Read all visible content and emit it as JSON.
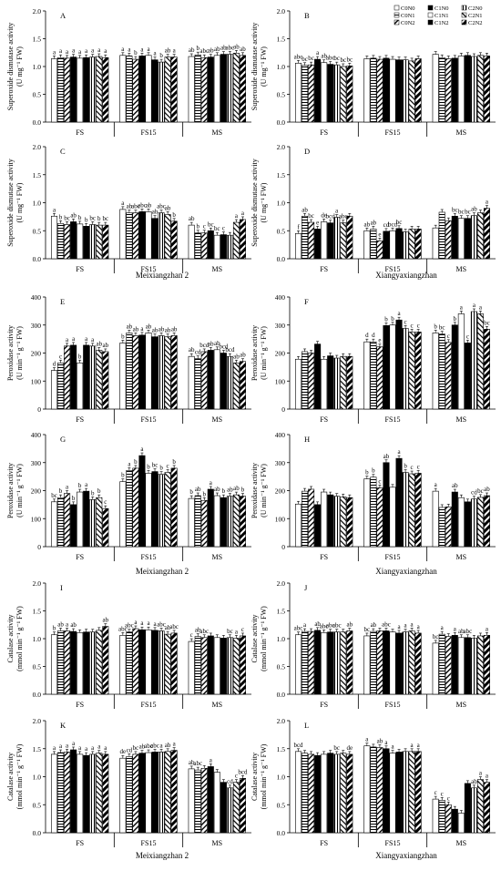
{
  "legend": [
    "C0N0",
    "C0N1",
    "C0N2",
    "C1N0",
    "C1N1",
    "C1N2",
    "C2N0",
    "C2N1",
    "C2N2"
  ],
  "group_labels": [
    "FS",
    "FS15",
    "MS"
  ],
  "cultivars": [
    "Meixiangzhan 2",
    "Xiangyaxiangzhan"
  ],
  "chart_data": [
    {
      "type": "bar",
      "panel": "A",
      "ylabel": "Superoxide dismutase activity",
      "yunit": "(U mg⁻¹ FW)",
      "ylim": [
        0,
        2
      ],
      "yticks": [
        "0.0",
        "0.5",
        "1.0",
        "1.5",
        "2.0"
      ],
      "categories": [
        "FS",
        "FS15",
        "MS"
      ],
      "values": [
        [
          1.14,
          1.16,
          1.15,
          1.17,
          1.15,
          1.16,
          1.17,
          1.18,
          1.16
        ],
        [
          1.2,
          1.19,
          1.13,
          1.19,
          1.2,
          1.12,
          1.08,
          1.17,
          1.17
        ],
        [
          1.18,
          1.21,
          1.16,
          1.17,
          1.2,
          1.22,
          1.22,
          1.24,
          1.2
        ]
      ],
      "labels": [
        [
          "a",
          "a",
          "a",
          "a",
          "a",
          "a",
          "a",
          "a",
          "a"
        ],
        [
          "a",
          "a",
          "b",
          "a",
          "a",
          "a",
          "b",
          "ab",
          "a"
        ],
        [
          "ab",
          "b",
          "abc",
          "ab",
          "ab",
          "ab",
          "abc",
          "ab",
          "ab"
        ]
      ]
    },
    {
      "type": "bar",
      "panel": "B",
      "ylabel": "Superoxide dismutase activity",
      "yunit": "(U mg⁻¹ FW)",
      "ylim": [
        0,
        2
      ],
      "yticks": [
        "0.0",
        "0.5",
        "1.0",
        "1.5",
        "2.0"
      ],
      "categories": [
        "FS",
        "FS15",
        "MS"
      ],
      "values": [
        [
          1.06,
          1.02,
          1.03,
          1.13,
          1.07,
          1.04,
          1.03,
          1.0,
          1.01
        ],
        [
          1.14,
          1.15,
          1.13,
          1.15,
          1.13,
          1.12,
          1.12,
          1.1,
          1.14
        ],
        [
          1.22,
          1.16,
          1.14,
          1.15,
          1.19,
          1.2,
          1.18,
          1.2,
          1.19
        ]
      ],
      "labels": [
        [
          "abc",
          "bc",
          "bc",
          "a",
          "ab",
          "abc",
          "bc",
          "bc",
          "bc"
        ],
        [
          "",
          "",
          "",
          "",
          "",
          "",
          "",
          "",
          ""
        ],
        [
          "",
          "",
          "",
          "",
          "",
          "",
          "",
          "",
          ""
        ]
      ]
    },
    {
      "type": "bar",
      "panel": "C",
      "ylabel": "Superoxide dismutase activity",
      "yunit": "(U mg⁻¹ FW)",
      "ylim": [
        0,
        2
      ],
      "yticks": [
        "0.0",
        "0.5",
        "1.0",
        "1.5",
        "2.0"
      ],
      "categories": [
        "FS",
        "FS15",
        "MS"
      ],
      "values": [
        [
          0.76,
          0.63,
          0.61,
          0.66,
          0.62,
          0.58,
          0.61,
          0.6,
          0.6
        ],
        [
          0.88,
          0.82,
          0.82,
          0.84,
          0.84,
          0.72,
          0.82,
          0.79,
          0.67
        ],
        [
          0.6,
          0.46,
          0.46,
          0.5,
          0.42,
          0.43,
          0.42,
          0.65,
          0.7
        ]
      ],
      "labels": [
        [
          "a",
          "b",
          "bc",
          "ab",
          "b",
          "b",
          "bc",
          "b",
          "bc"
        ],
        [
          "a",
          "ab",
          "abc",
          "abc",
          "ab",
          "ab",
          "abc",
          "ab",
          "b"
        ],
        [
          "ab",
          "b",
          "c",
          "bc",
          "bc",
          "c",
          "",
          "a",
          "a"
        ]
      ]
    },
    {
      "type": "bar",
      "panel": "D",
      "ylabel": "Superoxide dismutase activity",
      "yunit": "(U mg⁻¹ FW)",
      "ylim": [
        0,
        2
      ],
      "yticks": [
        "0.0",
        "0.5",
        "1.0",
        "1.5",
        "2.0"
      ],
      "categories": [
        "FS",
        "FS15",
        "MS"
      ],
      "values": [
        [
          0.45,
          0.76,
          0.65,
          0.53,
          0.66,
          0.64,
          0.74,
          0.64,
          0.76
        ],
        [
          0.5,
          0.53,
          0.32,
          0.49,
          0.5,
          0.54,
          0.48,
          0.53,
          0.53
        ],
        [
          0.55,
          0.83,
          0.68,
          0.76,
          0.72,
          0.72,
          0.77,
          0.82,
          0.9
        ]
      ],
      "labels": [
        [
          "f",
          "ab",
          "bc",
          "e",
          "de",
          "bcd",
          "a",
          "abc",
          ""
        ],
        [
          "ab",
          "ab",
          "e",
          "cd",
          "bcd",
          "bc",
          "",
          "",
          ""
        ],
        [
          "",
          "",
          "",
          "bc",
          "bc",
          "bc",
          "ab",
          "",
          "a"
        ]
      ]
    },
    {
      "type": "bar",
      "panel": "E",
      "ylabel": "Peroxidase activity",
      "yunit": "(U min⁻¹ g⁻¹ FW)",
      "ylim": [
        0,
        400
      ],
      "yticks": [
        "0",
        "100",
        "200",
        "300",
        "400"
      ],
      "categories": [
        "FS",
        "FS15",
        "MS"
      ],
      "values": [
        [
          138,
          165,
          225,
          228,
          165,
          228,
          225,
          210,
          205
        ],
        [
          236,
          272,
          262,
          264,
          272,
          258,
          262,
          258,
          262
        ],
        [
          188,
          180,
          205,
          210,
          212,
          200,
          188,
          165,
          170
        ]
      ],
      "labels": [
        [
          "d",
          "c",
          "a",
          "a",
          "b",
          "a",
          "a",
          "ab",
          "ab"
        ],
        [
          "b",
          "ab",
          "ab",
          "a",
          "ab",
          "ab",
          "ab",
          "ab",
          "ab"
        ],
        [
          "ab",
          "cd",
          "bcd",
          "ab",
          "ab",
          "bcd",
          "bcd",
          "ab",
          "ab"
        ]
      ]
    },
    {
      "type": "bar",
      "panel": "F",
      "ylabel": "Peroxidase activity",
      "yunit": "(U min⁻¹ g⁻¹ FW)",
      "ylim": [
        0,
        400
      ],
      "yticks": [
        "0",
        "100",
        "200",
        "300",
        "400"
      ],
      "categories": [
        "FS",
        "FS15",
        "MS"
      ],
      "values": [
        [
          178,
          205,
          200,
          232,
          178,
          190,
          182,
          188,
          188
        ],
        [
          240,
          240,
          222,
          298,
          300,
          318,
          288,
          275,
          275
        ],
        [
          272,
          268,
          238,
          300,
          340,
          236,
          348,
          340,
          285
        ]
      ],
      "labels": [
        [
          "",
          "",
          "",
          "",
          "",
          "",
          "",
          "",
          ""
        ],
        [
          "d",
          "d",
          "e",
          "b",
          "b",
          "a",
          "c",
          "c",
          "c"
        ],
        [
          "b",
          "bc",
          "c",
          "b",
          "a",
          "c",
          "a",
          "a",
          "bc"
        ]
      ]
    },
    {
      "type": "bar",
      "panel": "G",
      "ylabel": "Peroxidase activity",
      "yunit": "(U min⁻¹ g⁻¹ FW)",
      "ylim": [
        0,
        400
      ],
      "yticks": [
        "0",
        "100",
        "200",
        "300",
        "400"
      ],
      "categories": [
        "FS",
        "FS15",
        "MS"
      ],
      "values": [
        [
          160,
          175,
          190,
          150,
          195,
          198,
          168,
          175,
          136
        ],
        [
          232,
          272,
          280,
          325,
          262,
          268,
          258,
          265,
          280
        ],
        [
          172,
          182,
          165,
          205,
          182,
          175,
          180,
          185,
          180
        ]
      ],
      "labels": [
        [
          "bc",
          "b",
          "a",
          "b",
          "b",
          "a",
          "b",
          "b",
          "c"
        ],
        [
          "b",
          "a",
          "b",
          "a",
          "b",
          "bc",
          "b",
          "c",
          "b"
        ],
        [
          "b",
          "ab",
          "b",
          "a",
          "ab",
          "b",
          "ab",
          "ab",
          "b"
        ]
      ]
    },
    {
      "type": "bar",
      "panel": "H",
      "ylabel": "Peroxidase activity",
      "yunit": "(U min⁻¹ g⁻¹ FW)",
      "ylim": [
        0,
        400
      ],
      "yticks": [
        "0",
        "100",
        "200",
        "300",
        "400"
      ],
      "categories": [
        "FS",
        "FS15",
        "MS"
      ],
      "values": [
        [
          152,
          198,
          205,
          150,
          195,
          185,
          180,
          178,
          175
        ],
        [
          242,
          248,
          210,
          300,
          212,
          315,
          265,
          260,
          262
        ],
        [
          198,
          140,
          142,
          195,
          175,
          160,
          170,
          176,
          182
        ]
      ],
      "labels": [
        [
          "",
          "",
          "",
          "",
          "",
          "",
          "",
          "",
          ""
        ],
        [
          "b",
          "b",
          "c",
          "ab",
          "",
          "a",
          "b",
          "c",
          "c"
        ],
        [
          "a",
          "",
          "",
          "ab",
          "",
          "",
          "cd",
          "bc",
          "ab"
        ]
      ]
    },
    {
      "type": "bar",
      "panel": "I",
      "ylabel": "Catalase activity",
      "yunit": "(mmol min⁻¹ g⁻¹ FW)",
      "ylim": [
        0,
        2
      ],
      "yticks": [
        "0.0",
        "0.5",
        "1.0",
        "1.5",
        "2.0"
      ],
      "categories": [
        "FS",
        "FS15",
        "MS"
      ],
      "values": [
        [
          1.07,
          1.14,
          1.14,
          1.13,
          1.11,
          1.12,
          1.12,
          1.15,
          1.22
        ],
        [
          1.06,
          1.12,
          1.18,
          1.16,
          1.16,
          1.15,
          1.14,
          1.08,
          1.1
        ],
        [
          0.95,
          1.04,
          1.02,
          1.05,
          1.02,
          1.01,
          1.02,
          1.01,
          1.05
        ]
      ],
      "labels": [
        [
          "b",
          "ab",
          "a",
          "ab",
          "",
          "",
          "",
          "",
          "ab"
        ],
        [
          "abc",
          "abc",
          "a",
          "a",
          "a",
          "a",
          "abc",
          "ab",
          "abc"
        ],
        [
          "c",
          "ab",
          "abc",
          "",
          "",
          "",
          "bc",
          "a",
          "c"
        ]
      ]
    },
    {
      "type": "bar",
      "panel": "J",
      "ylabel": "Catalase activity",
      "yunit": "(mmol min⁻¹ g⁻¹ FW)",
      "ylim": [
        0,
        2
      ],
      "yticks": [
        "0.0",
        "0.5",
        "1.0",
        "1.5",
        "2.0"
      ],
      "categories": [
        "FS",
        "FS15",
        "MS"
      ],
      "values": [
        [
          1.07,
          1.13,
          1.13,
          1.15,
          1.11,
          1.12,
          1.12,
          1.12,
          1.14
        ],
        [
          1.05,
          1.13,
          1.14,
          1.14,
          1.12,
          1.1,
          1.12,
          1.14,
          1.1
        ],
        [
          0.92,
          1.08,
          1.04,
          1.06,
          1.02,
          1.02,
          1.01,
          1.05,
          1.06
        ]
      ],
      "labels": [
        [
          "abc",
          "a",
          "",
          "ab",
          "abc",
          "abc",
          "abc",
          "",
          "ab"
        ],
        [
          "bc",
          "ab",
          "",
          "abc",
          "",
          "a",
          "a",
          "a",
          "a"
        ],
        [
          "bc",
          "a",
          "",
          "a",
          "ab",
          "abc",
          "",
          "",
          "a"
        ]
      ]
    },
    {
      "type": "bar",
      "panel": "K",
      "ylabel": "Catalase activity",
      "yunit": "(mmol min⁻¹ g⁻¹ FW)",
      "ylim": [
        0,
        2
      ],
      "yticks": [
        "0.0",
        "0.5",
        "1.0",
        "1.5",
        "2.0"
      ],
      "categories": [
        "FS",
        "FS15",
        "MS"
      ],
      "values": [
        [
          1.4,
          1.43,
          1.44,
          1.48,
          1.4,
          1.38,
          1.4,
          1.42,
          1.4
        ],
        [
          1.33,
          1.36,
          1.4,
          1.42,
          1.43,
          1.44,
          1.44,
          1.45,
          1.47
        ],
        [
          1.14,
          1.12,
          1.15,
          1.18,
          1.08,
          0.9,
          0.8,
          0.9,
          0.97
        ]
      ],
      "labels": [
        [
          "a",
          "a",
          "a",
          "a",
          "a",
          "a",
          "a",
          "a",
          "a"
        ],
        [
          "de",
          "cd",
          "bc",
          "ab",
          "abc",
          "abc",
          "a",
          "ab",
          "a"
        ],
        [
          "ab",
          "abc",
          "",
          "a",
          "",
          "",
          "cd",
          "c",
          "bcd"
        ]
      ]
    },
    {
      "type": "bar",
      "panel": "L",
      "ylabel": "Catalase activity",
      "yunit": "(mmol min⁻¹ g⁻¹ FW)",
      "ylim": [
        0,
        2
      ],
      "yticks": [
        "0.0",
        "0.5",
        "1.0",
        "1.5",
        "2.0"
      ],
      "categories": [
        "FS",
        "FS15",
        "MS"
      ],
      "values": [
        [
          1.45,
          1.42,
          1.4,
          1.38,
          1.4,
          1.42,
          1.4,
          1.42,
          1.4
        ],
        [
          1.55,
          1.53,
          1.52,
          1.5,
          1.42,
          1.44,
          1.45,
          1.45,
          1.45
        ],
        [
          0.6,
          0.58,
          0.5,
          0.42,
          0.35,
          0.88,
          0.8,
          0.95,
          0.9
        ]
      ],
      "labels": [
        [
          "bcd",
          "",
          "",
          "",
          "",
          "",
          "bc",
          "",
          "de"
        ],
        [
          "a",
          "",
          "ab",
          "a",
          "a",
          "",
          "",
          "a",
          "a"
        ],
        [
          "c",
          "c",
          "c",
          "",
          "",
          "",
          "ab",
          "a",
          "a"
        ]
      ]
    }
  ]
}
